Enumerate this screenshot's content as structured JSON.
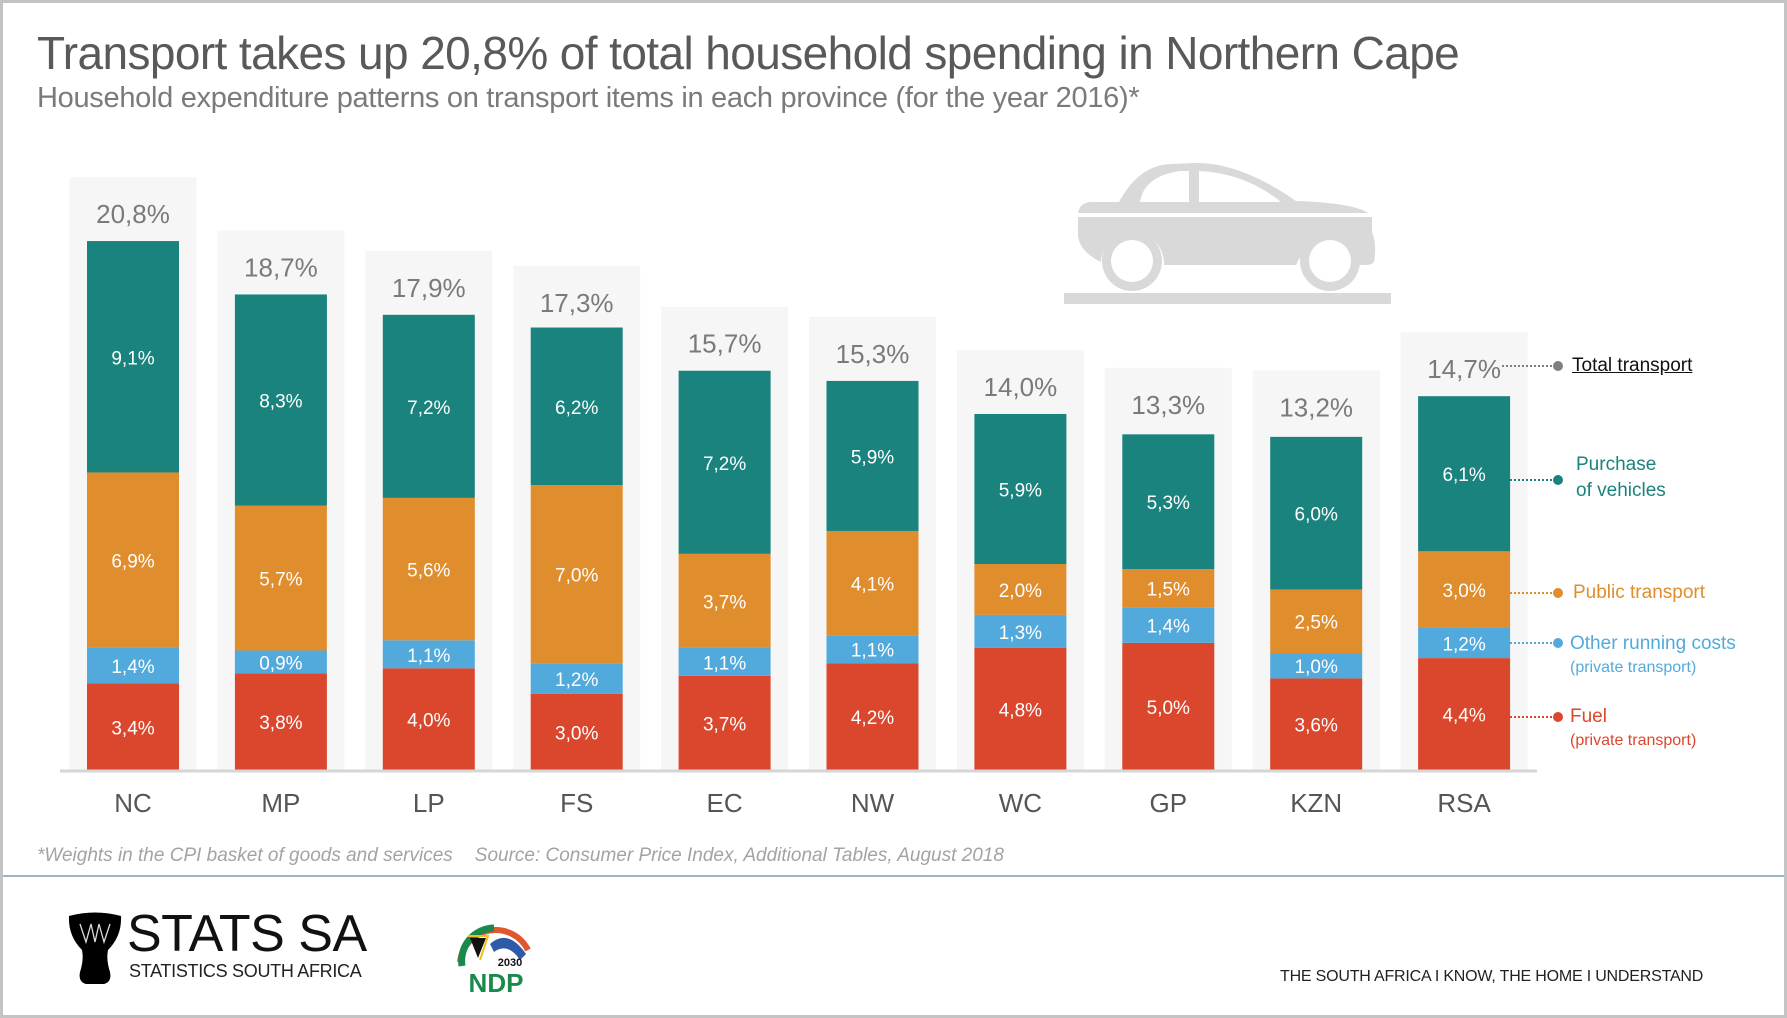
{
  "header": {
    "title": "Transport takes up 20,8% of total household spending in Northern Cape",
    "subtitle": "Household expenditure patterns on transport items in each province (for the year 2016)*"
  },
  "chart_data": {
    "type": "bar",
    "stacked": true,
    "title": "Transport takes up 20,8% of total household spending in Northern Cape",
    "subtitle": "Household expenditure patterns on transport items in each province (for the year 2016)*",
    "xlabel": "",
    "ylabel": "",
    "unit": "%",
    "grid": false,
    "legend_position": "right",
    "categories": [
      "NC",
      "MP",
      "LP",
      "FS",
      "EC",
      "NW",
      "WC",
      "GP",
      "KZN",
      "RSA"
    ],
    "totals": [
      20.8,
      18.7,
      17.9,
      17.3,
      15.7,
      15.3,
      14.0,
      13.3,
      13.2,
      14.7
    ],
    "total_labels": [
      "20,8%",
      "18,7%",
      "17,9%",
      "17,3%",
      "15,7%",
      "15,3%",
      "14,0%",
      "13,3%",
      "13,2%",
      "14,7%"
    ],
    "series": [
      {
        "name": "Fuel (private transport)",
        "color": "#db472d",
        "values": [
          3.4,
          3.8,
          4.0,
          3.0,
          3.7,
          4.2,
          4.8,
          5.0,
          3.6,
          4.4
        ],
        "labels": [
          "3,4%",
          "3,8%",
          "4,0%",
          "3,0%",
          "3,7%",
          "4,2%",
          "4,8%",
          "5,0%",
          "3,6%",
          "4,4%"
        ]
      },
      {
        "name": "Other running costs (private transport)",
        "color": "#52aadc",
        "values": [
          1.4,
          0.9,
          1.1,
          1.2,
          1.1,
          1.1,
          1.3,
          1.4,
          1.0,
          1.2
        ],
        "labels": [
          "1,4%",
          "0,9%",
          "1,1%",
          "1,2%",
          "1,1%",
          "1,1%",
          "1,3%",
          "1,4%",
          "1,0%",
          "1,2%"
        ]
      },
      {
        "name": "Public transport",
        "color": "#e08d2d",
        "values": [
          6.9,
          5.7,
          5.6,
          7.0,
          3.7,
          4.1,
          2.0,
          1.5,
          2.5,
          3.0
        ],
        "labels": [
          "6,9%",
          "5,7%",
          "5,6%",
          "7,0%",
          "3,7%",
          "4,1%",
          "2,0%",
          "1,5%",
          "2,5%",
          "3,0%"
        ]
      },
      {
        "name": "Purchase of vehicles",
        "color": "#1a837e",
        "values": [
          9.1,
          8.3,
          7.2,
          6.2,
          7.2,
          5.9,
          5.9,
          5.3,
          6.0,
          6.1
        ],
        "labels": [
          "9,1%",
          "8,3%",
          "7,2%",
          "6,2%",
          "7,2%",
          "5,9%",
          "5,9%",
          "5,3%",
          "6,0%",
          "6,1%"
        ]
      }
    ],
    "ylim": [
      0,
      20.8
    ]
  },
  "legend": {
    "total": {
      "label": "Total transport",
      "color": "#7f7f7f"
    },
    "purchase": {
      "line1": "Purchase",
      "line2": "of vehicles",
      "color": "#1a837e"
    },
    "public": {
      "label": "Public transport",
      "color": "#e08d2d"
    },
    "other": {
      "label": "Other running costs",
      "sub": "(private transport)",
      "color": "#52aadc"
    },
    "fuel": {
      "label": "Fuel",
      "sub": "(private transport)",
      "color": "#db472d"
    }
  },
  "icons": {
    "illustration": "car-icon"
  },
  "footer": {
    "footnote": "*Weights in the CPI basket of goods and services",
    "source": "Source: Consumer Price Index, Additional Tables, August 2018",
    "logo_main": "STATS SA",
    "logo_sub": "STATISTICS SOUTH AFRICA",
    "ndp_year": "2030",
    "ndp_text": "NDP",
    "slogan": "THE SOUTH AFRICA I KNOW, THE HOME I UNDERSTAND"
  }
}
